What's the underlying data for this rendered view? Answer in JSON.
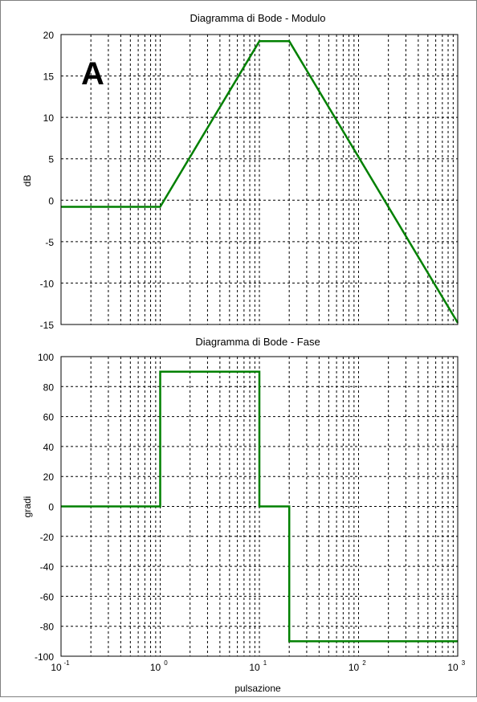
{
  "letter": "A",
  "colors": {
    "curve": "#008000",
    "grid": "#000000",
    "background": "#ffffff"
  },
  "chart_data": [
    {
      "type": "line",
      "title": "Diagramma di Bode - Modulo",
      "xlabel": "",
      "ylabel": "dB",
      "xscale": "log",
      "xlim": [
        0.1,
        1000
      ],
      "ylim": [
        -15,
        20
      ],
      "yticks": [
        20,
        15,
        10,
        5,
        0,
        -5,
        -10,
        -15
      ],
      "grid": true,
      "series": [
        {
          "x": [
            0.1,
            1,
            10,
            20,
            1000
          ],
          "y": [
            -0.8,
            -0.8,
            19.2,
            19.2,
            -14.8
          ]
        }
      ]
    },
    {
      "type": "line",
      "title": "Diagramma di Bode - Fase",
      "xlabel": "pulsazione",
      "ylabel": "gradi",
      "xscale": "log",
      "xlim": [
        0.1,
        1000
      ],
      "ylim": [
        -100,
        100
      ],
      "yticks": [
        100,
        80,
        60,
        40,
        20,
        0,
        -20,
        -40,
        -60,
        -80,
        -100
      ],
      "xticks": [
        {
          "base": "10",
          "exp": "-1"
        },
        {
          "base": "10",
          "exp": "0"
        },
        {
          "base": "10",
          "exp": "1"
        },
        {
          "base": "10",
          "exp": "2"
        },
        {
          "base": "10",
          "exp": "3"
        }
      ],
      "grid": true,
      "series": [
        {
          "x": [
            0.1,
            1,
            1,
            10,
            10,
            20,
            20,
            1000
          ],
          "y": [
            0,
            0,
            90,
            90,
            0,
            0,
            -90,
            -90
          ]
        }
      ]
    }
  ]
}
